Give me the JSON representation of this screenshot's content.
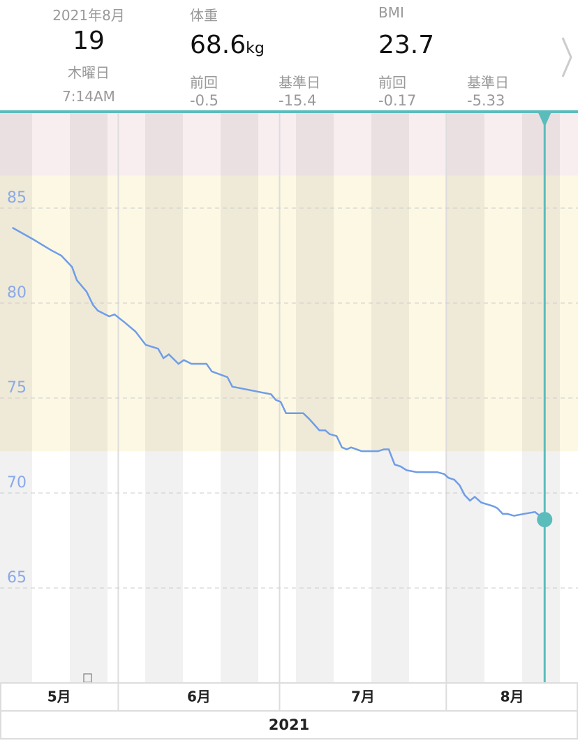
{
  "header": {
    "date": {
      "month": "2021年8月",
      "day": "19",
      "weekday": "木曜日",
      "time": "7:14AM"
    },
    "weight": {
      "label": "体重",
      "value": "68.6",
      "unit": "kg",
      "prev_label": "前回",
      "prev": "-0.5",
      "base_label": "基準日",
      "base": "-15.4"
    },
    "bmi": {
      "label": "BMI",
      "value": "23.7",
      "prev_label": "前回",
      "prev": "-0.17",
      "base_label": "基準日",
      "base": "-5.33"
    }
  },
  "chart_data": {
    "type": "line",
    "color": "#6f9de8",
    "marker_color": "#5bbcbc",
    "x": [
      2.3,
      6.2,
      9.4,
      11.4,
      13.4,
      14.3,
      16.1,
      17.3,
      18.2,
      20.3,
      21.3,
      23.1,
      25.2,
      27.1,
      29.4,
      30.4,
      31.4,
      33.2,
      34.2,
      35.6,
      38.4,
      39.4,
      42.3,
      43.2,
      50.4,
      51.3,
      52.2,
      53.2,
      56.4,
      57.5,
      59.4,
      60.5,
      61.3,
      62.6,
      63.6,
      64.5,
      65.3,
      67.3,
      70.3,
      71.4,
      72.3,
      73.4,
      74.5,
      75.6,
      77.5,
      81.3,
      82.6,
      83.4,
      84.5,
      85.5,
      86.4,
      87.4,
      88.3,
      89.5,
      91.8,
      92.5,
      93.5,
      94.4,
      95.6,
      97.4,
      99.5,
      101.3
    ],
    "values": [
      83.97,
      83.35,
      82.8,
      82.5,
      81.9,
      81.2,
      80.6,
      79.9,
      79.6,
      79.3,
      79.4,
      79.0,
      78.5,
      77.8,
      77.6,
      77.1,
      77.3,
      76.8,
      77.0,
      76.8,
      76.8,
      76.4,
      76.1,
      75.6,
      75.2,
      74.9,
      74.8,
      74.2,
      74.2,
      73.9,
      73.3,
      73.3,
      73.1,
      73.0,
      72.4,
      72.3,
      72.4,
      72.2,
      72.2,
      72.3,
      72.3,
      71.5,
      71.4,
      71.2,
      71.1,
      71.1,
      71.0,
      70.8,
      70.7,
      70.4,
      69.9,
      69.6,
      69.8,
      69.5,
      69.3,
      69.2,
      68.9,
      68.9,
      68.8,
      68.9,
      69.0,
      68.6
    ],
    "xlim": [
      0,
      107.5
    ],
    "ylim": [
      60,
      90
    ],
    "yticks": [
      65,
      70,
      75,
      80,
      85
    ],
    "grid": true,
    "zones": [
      {
        "from": 86.7,
        "to": 90,
        "color": "#f8eef0"
      },
      {
        "from": 72.2,
        "to": 86.7,
        "color": "#fdf8e4"
      }
    ],
    "months": [
      {
        "label": "5月",
        "from": 0,
        "to": 22
      },
      {
        "label": "6月",
        "from": 22,
        "to": 52
      },
      {
        "label": "7月",
        "from": 52,
        "to": 83
      },
      {
        "label": "8月",
        "from": 83,
        "to": 107.5
      }
    ],
    "year": "2021"
  }
}
